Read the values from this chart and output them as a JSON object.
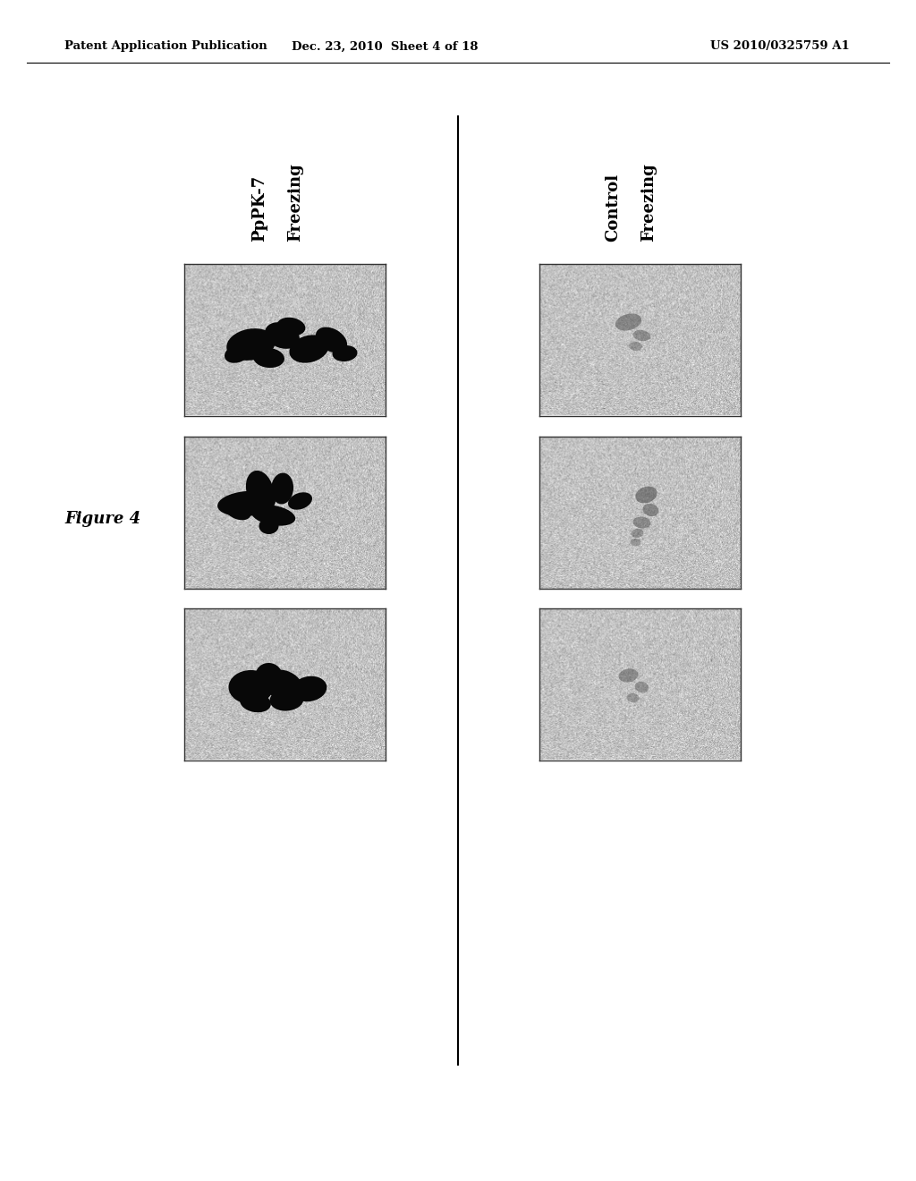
{
  "header_left": "Patent Application Publication",
  "header_middle": "Dec. 23, 2010  Sheet 4 of 18",
  "header_right": "US 2010/0325759 A1",
  "figure_label": "Figure 4",
  "col1_label1": "PpPK-7",
  "col1_label2": "Freezing",
  "col2_label1": "Control",
  "col2_label2": "Freezing",
  "bg_color": "#ffffff",
  "header_font_size": 9.5,
  "label_font_size": 13,
  "figure_label_font_size": 13,
  "image_bg": "#c2c2c2",
  "dark_plant": "#080808",
  "img_border_color": "#333333"
}
